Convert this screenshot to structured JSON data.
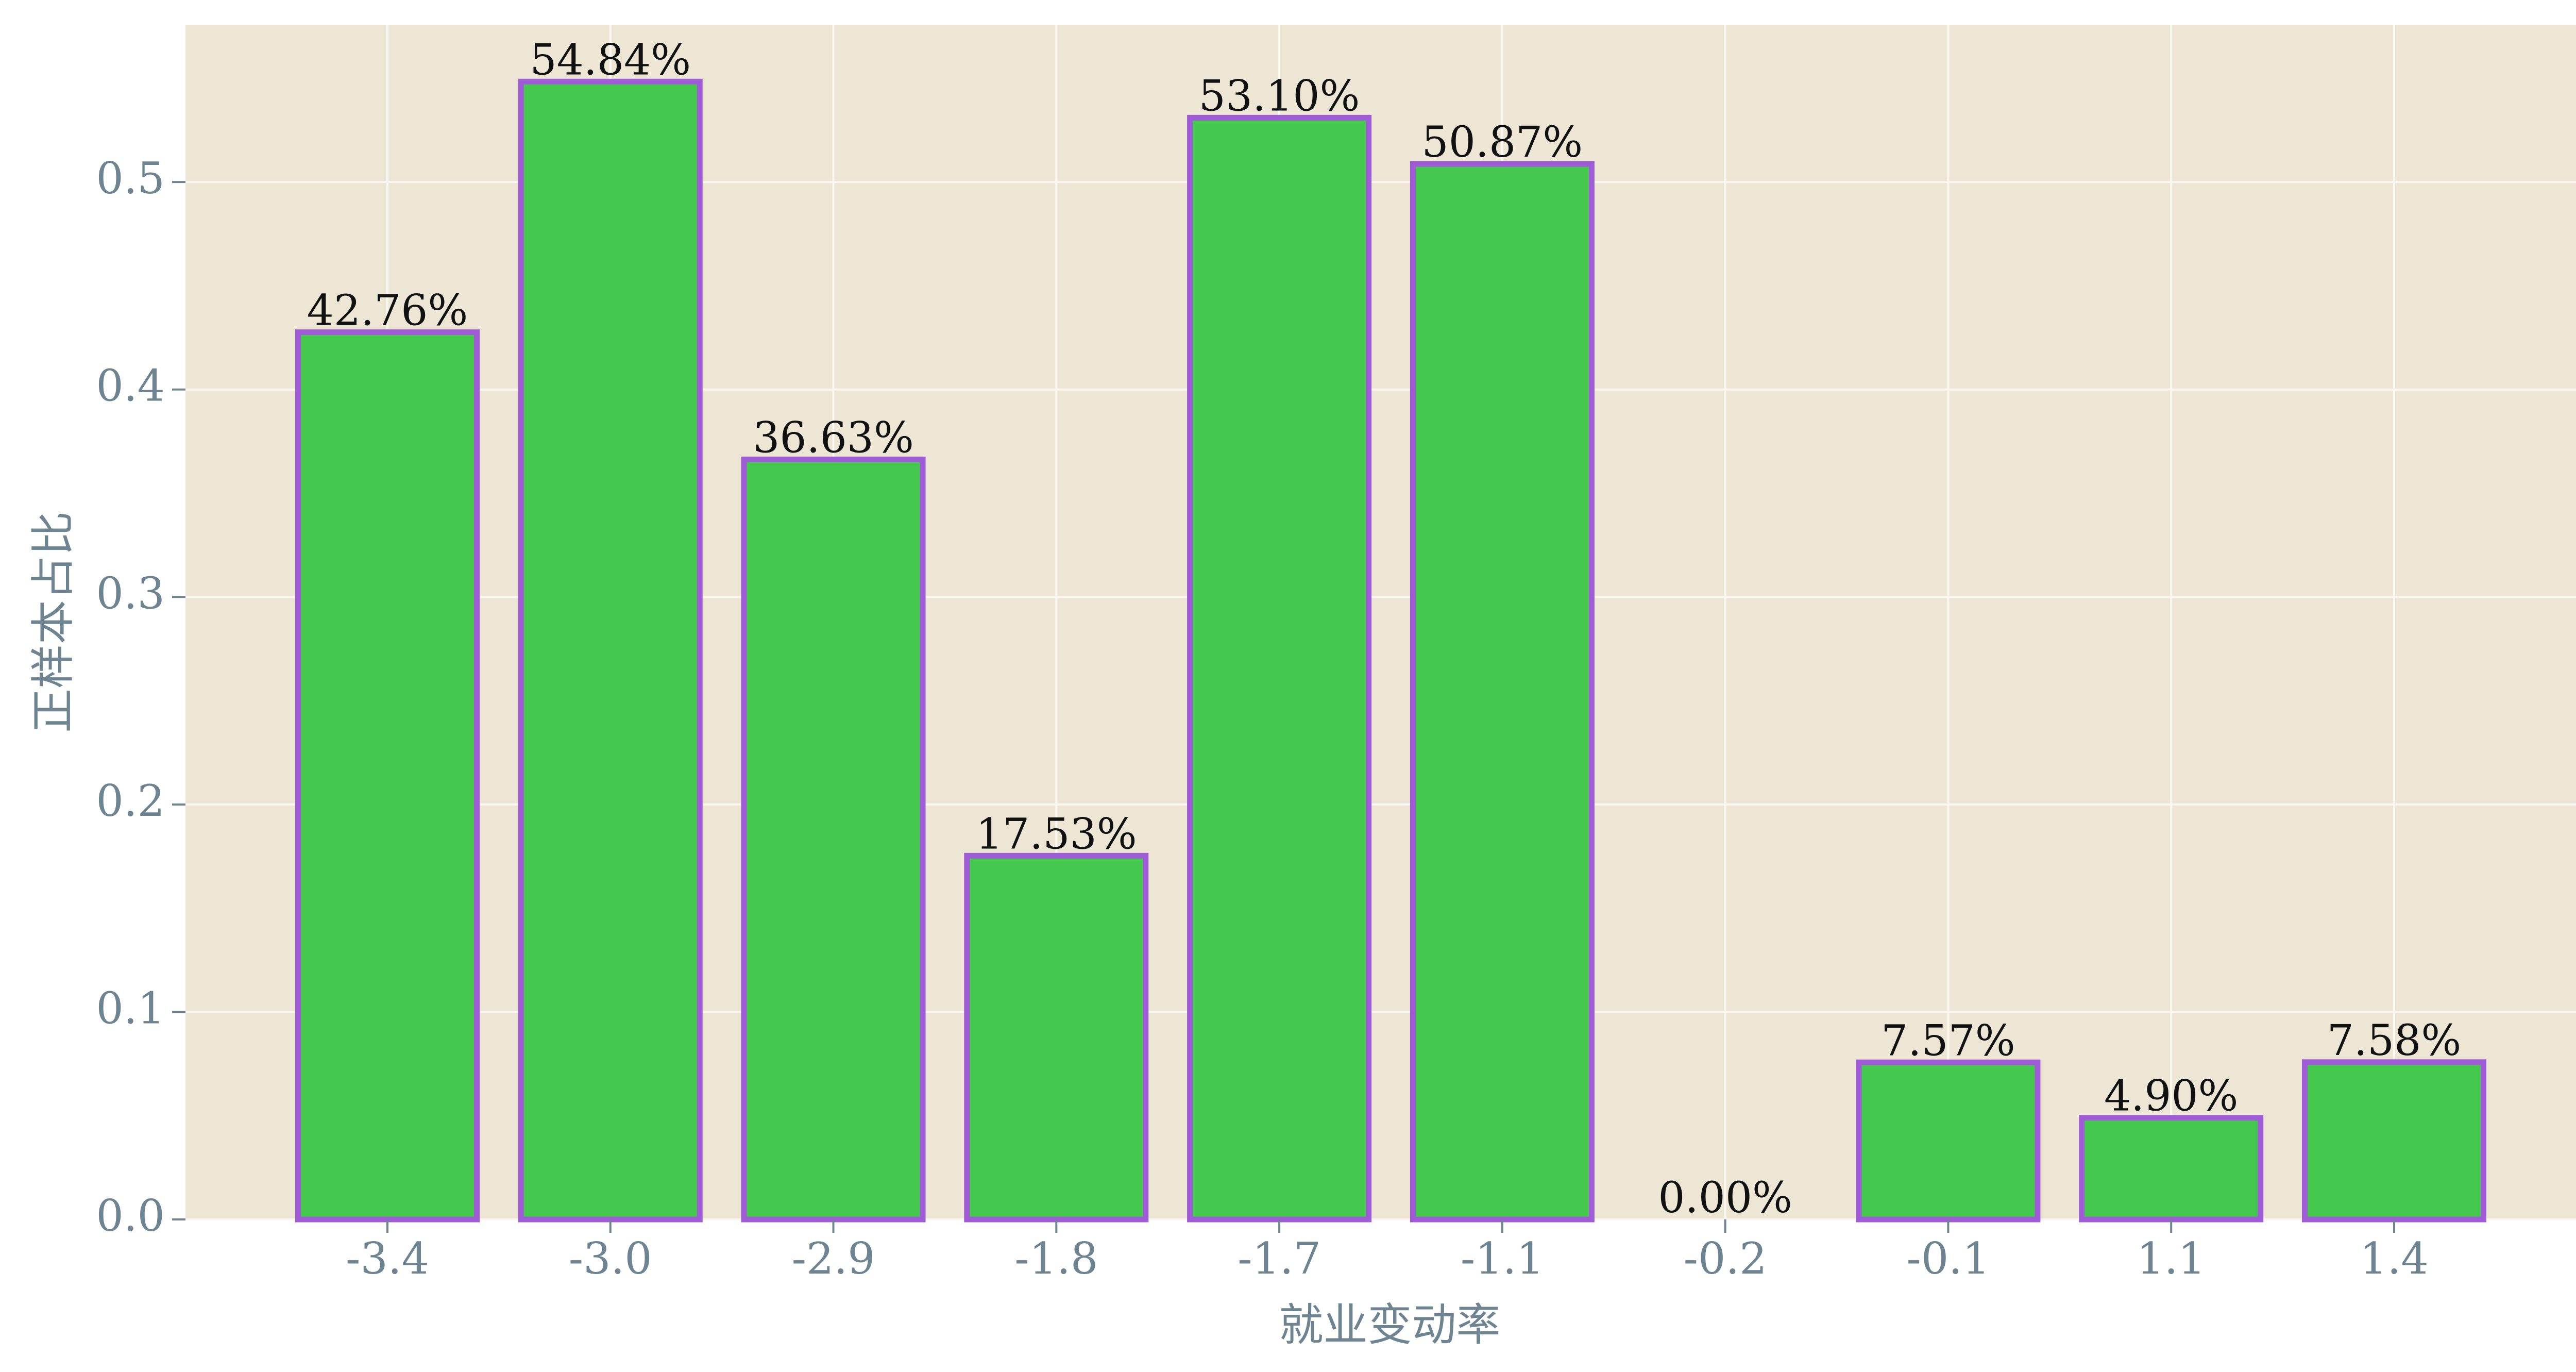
{
  "chart_data": {
    "type": "bar",
    "title": "",
    "xlabel": "就业变动率",
    "ylabel": "正样本占比",
    "categories": [
      "-3.4",
      "-3.0",
      "-2.9",
      "-1.8",
      "-1.7",
      "-1.1",
      "-0.2",
      "-0.1",
      "1.1",
      "1.4"
    ],
    "values": [
      0.4276,
      0.5484,
      0.3663,
      0.1753,
      0.531,
      0.5087,
      0.0,
      0.0757,
      0.049,
      0.0758
    ],
    "data_labels": [
      "42.76%",
      "54.84%",
      "36.63%",
      "17.53%",
      "53.10%",
      "50.87%",
      "0.00%",
      "7.57%",
      "4.90%",
      "7.58%"
    ],
    "yticks": [
      "0.0",
      "0.1",
      "0.2",
      "0.3",
      "0.4",
      "0.5"
    ],
    "ytick_values": [
      0,
      0.1,
      0.2,
      0.3,
      0.4,
      0.5
    ],
    "ylim": [
      0,
      0.5758
    ],
    "grid": true,
    "legend": "none",
    "colors": {
      "plot_background": "#EEE6D5",
      "grid": "#FAF7F0",
      "bar_fill": "#44C84E",
      "bar_edge": "#A05CD6",
      "tick_label": "#6E8591",
      "data_label": "#111111"
    }
  }
}
